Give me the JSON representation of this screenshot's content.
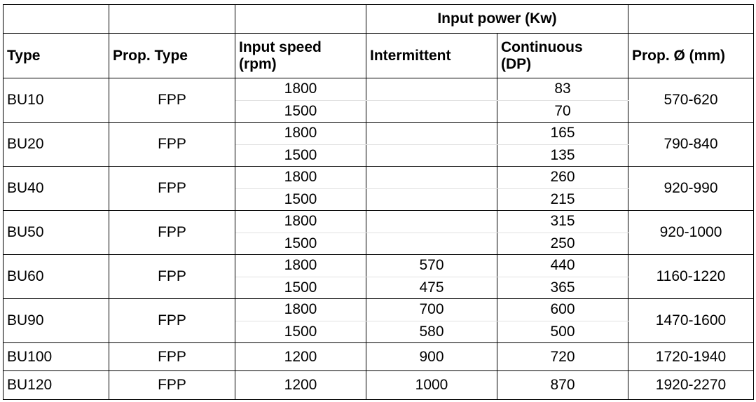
{
  "table": {
    "group_header": "Input power (Kw)",
    "headers": [
      "Type",
      "Prop. Type",
      "Input speed (rpm)",
      "Intermittent",
      "Continuous (DP)",
      "Prop. Ø (mm)"
    ],
    "rows": [
      {
        "type": "BU10",
        "prop_type": "FPP",
        "diameter": "570-620",
        "speeds": [
          {
            "speed": 1800,
            "continuous": 83
          },
          {
            "speed": 1500,
            "continuous": 70
          }
        ]
      },
      {
        "type": "BU20",
        "prop_type": "FPP",
        "diameter": "790-840",
        "speeds": [
          {
            "speed": 1800,
            "continuous": 165
          },
          {
            "speed": 1500,
            "continuous": 135
          }
        ]
      },
      {
        "type": "BU40",
        "prop_type": "FPP",
        "diameter": "920-990",
        "speeds": [
          {
            "speed": 1800,
            "continuous": 260
          },
          {
            "speed": 1500,
            "continuous": 215
          }
        ]
      },
      {
        "type": "BU50",
        "prop_type": "FPP",
        "diameter": "920-1000",
        "speeds": [
          {
            "speed": 1800,
            "continuous": 315
          },
          {
            "speed": 1500,
            "continuous": 250
          }
        ]
      },
      {
        "type": "BU60",
        "prop_type": "FPP",
        "diameter": "1160-1220",
        "speeds": [
          {
            "speed": 1800,
            "intermittent": 570,
            "continuous": 440
          },
          {
            "speed": 1500,
            "intermittent": 475,
            "continuous": 365
          }
        ]
      },
      {
        "type": "BU90",
        "prop_type": "FPP",
        "diameter": "1470-1600",
        "speeds": [
          {
            "speed": 1800,
            "intermittent": 700,
            "continuous": 600
          },
          {
            "speed": 1500,
            "intermittent": 580,
            "continuous": 500
          }
        ]
      },
      {
        "type": "BU100",
        "prop_type": "FPP",
        "diameter": "1720-1940",
        "speeds": [
          {
            "speed": 1200,
            "intermittent": 900,
            "continuous": 720
          }
        ]
      },
      {
        "type": "BU120",
        "prop_type": "FPP",
        "diameter": "1920-2270",
        "speeds": [
          {
            "speed": 1200,
            "intermittent": 1000,
            "continuous": 870
          }
        ]
      }
    ]
  }
}
